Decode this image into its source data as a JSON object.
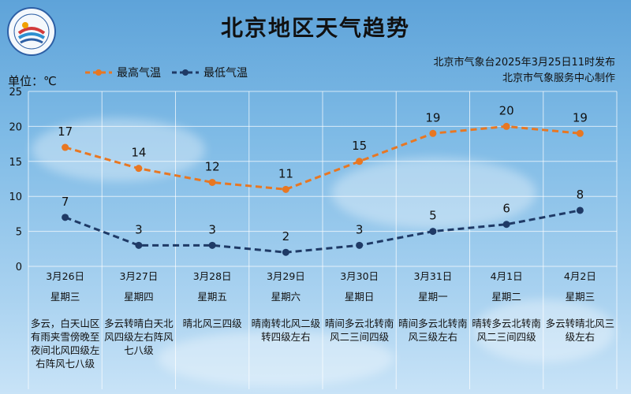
{
  "title": "北京地区天气趋势",
  "unit": "单位：℃",
  "legend": {
    "high": "最高气温",
    "low": "最低气温"
  },
  "issuer": {
    "line1": "北京市气象台2025年3月25日11时发布",
    "line2": "北京市气象服务中心制作"
  },
  "colors": {
    "high": "#e87722",
    "low": "#1f3a66"
  },
  "chart_data": {
    "type": "line",
    "title": "北京地区天气趋势",
    "ylabel": "单位：℃",
    "ylim": [
      0,
      25
    ],
    "yticks": [
      0,
      5,
      10,
      15,
      20,
      25
    ],
    "categories": [
      "3月26日",
      "3月27日",
      "3月28日",
      "3月29日",
      "3月30日",
      "3月31日",
      "4月1日",
      "4月2日"
    ],
    "series": [
      {
        "name": "最高气温",
        "values": [
          17,
          14,
          12,
          11,
          15,
          19,
          20,
          19
        ]
      },
      {
        "name": "最低气温",
        "values": [
          7,
          3,
          3,
          2,
          3,
          5,
          6,
          8
        ]
      }
    ]
  },
  "days": [
    {
      "date": "3月26日",
      "weekday": "星期三",
      "weather": "多云，白天山区有雨夹雪傍晚至夜间北风四级左右阵风七八级"
    },
    {
      "date": "3月27日",
      "weekday": "星期四",
      "weather": "多云转晴白天北风四级左右阵风七八级"
    },
    {
      "date": "3月28日",
      "weekday": "星期五",
      "weather": "晴北风三四级"
    },
    {
      "date": "3月29日",
      "weekday": "星期六",
      "weather": "晴南转北风二级转四级左右"
    },
    {
      "date": "3月30日",
      "weekday": "星期日",
      "weather": "晴间多云北转南风二三间四级"
    },
    {
      "date": "3月31日",
      "weekday": "星期一",
      "weather": "晴间多云北转南风三级左右"
    },
    {
      "date": "4月1日",
      "weekday": "星期二",
      "weather": "晴转多云北转南风二三间四级"
    },
    {
      "date": "4月2日",
      "weekday": "星期三",
      "weather": "多云转晴北风三级左右"
    }
  ]
}
